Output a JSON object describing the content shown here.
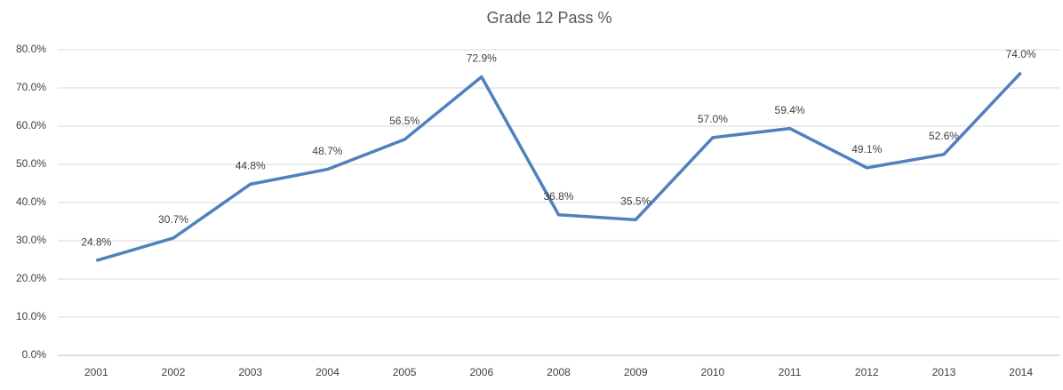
{
  "chart_data": {
    "type": "line",
    "title": "Grade 12 Pass %",
    "categories": [
      "2001",
      "2002",
      "2003",
      "2004",
      "2005",
      "2006",
      "2008",
      "2009",
      "2010",
      "2011",
      "2012",
      "2013",
      "2014"
    ],
    "series": [
      {
        "name": "Grade 12 Pass %",
        "color": "#4f81bd",
        "values": [
          24.8,
          30.7,
          44.8,
          48.7,
          56.5,
          72.9,
          36.8,
          35.5,
          57.0,
          59.4,
          49.1,
          52.6,
          74.0
        ],
        "value_labels": [
          "24.8%",
          "30.7%",
          "44.8%",
          "48.7%",
          "56.5%",
          "72.9%",
          "36.8%",
          "35.5%",
          "57.0%",
          "59.4%",
          "49.1%",
          "52.6%",
          "74.0%"
        ]
      }
    ],
    "ylim": [
      0,
      80
    ],
    "yticks": [
      {
        "value": 0,
        "label": "0.0%"
      },
      {
        "value": 10,
        "label": "10.0%"
      },
      {
        "value": 20,
        "label": "20.0%"
      },
      {
        "value": 30,
        "label": "30.0%"
      },
      {
        "value": 40,
        "label": "40.0%"
      },
      {
        "value": 50,
        "label": "50.0%"
      },
      {
        "value": 60,
        "label": "60.0%"
      },
      {
        "value": 70,
        "label": "70.0%"
      },
      {
        "value": 80,
        "label": "80.0%"
      }
    ],
    "grid": true
  }
}
